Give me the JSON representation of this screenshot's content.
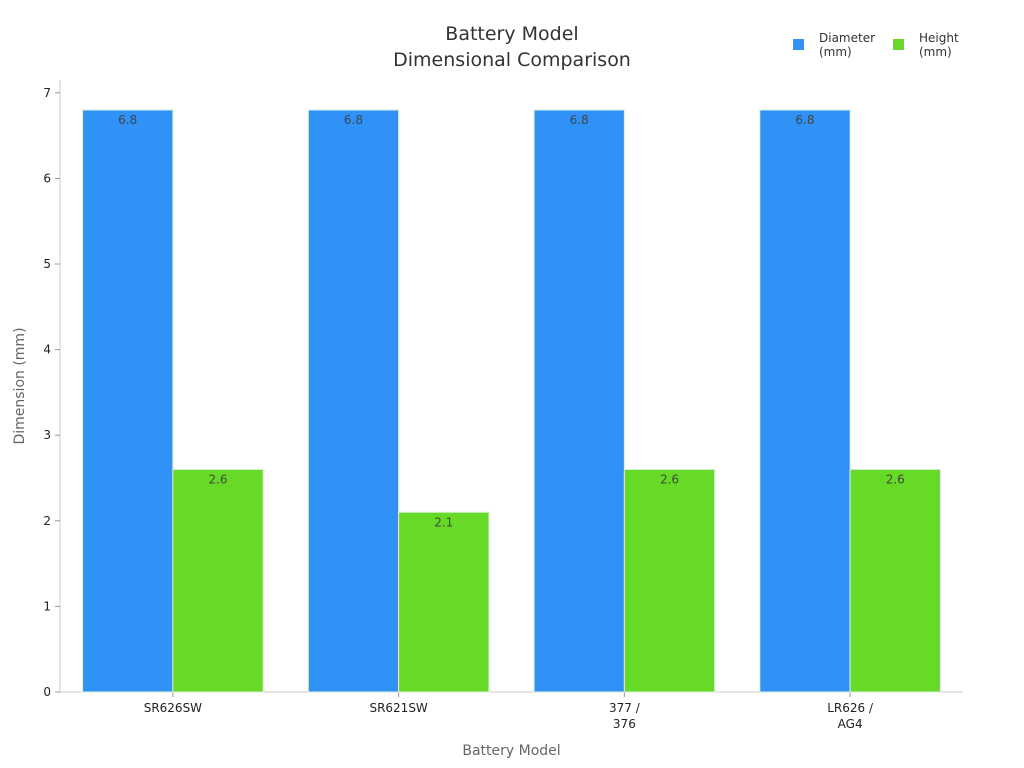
{
  "chart_data": {
    "type": "bar",
    "title": [
      "Battery Model",
      "Dimensional Comparison"
    ],
    "xlabel": "Battery Model",
    "ylabel": "Dimension (mm)",
    "categories": [
      [
        "SR626SW"
      ],
      [
        "SR621SW"
      ],
      [
        "377 /",
        "376"
      ],
      [
        "LR626 /",
        "AG4"
      ]
    ],
    "series": [
      {
        "name": [
          "Diameter",
          "(mm)"
        ],
        "color": "#3091f6",
        "values": [
          6.8,
          6.8,
          6.8,
          6.8
        ],
        "labels": [
          "6.8",
          "6.8",
          "6.8",
          "6.8"
        ]
      },
      {
        "name": [
          "Height",
          "(mm)"
        ],
        "color": "#67da28",
        "values": [
          2.6,
          2.1,
          2.6,
          2.6
        ],
        "labels": [
          "2.6",
          "2.1",
          "2.6",
          "2.6"
        ]
      }
    ],
    "ylim": [
      0,
      7.15
    ],
    "yticks": [
      0,
      1,
      2,
      3,
      4,
      5,
      6,
      7
    ],
    "ytick_labels": [
      "0",
      "1",
      "2",
      "3",
      "4",
      "5",
      "6",
      "7"
    ],
    "grid": false,
    "legend_position": "top-right"
  }
}
